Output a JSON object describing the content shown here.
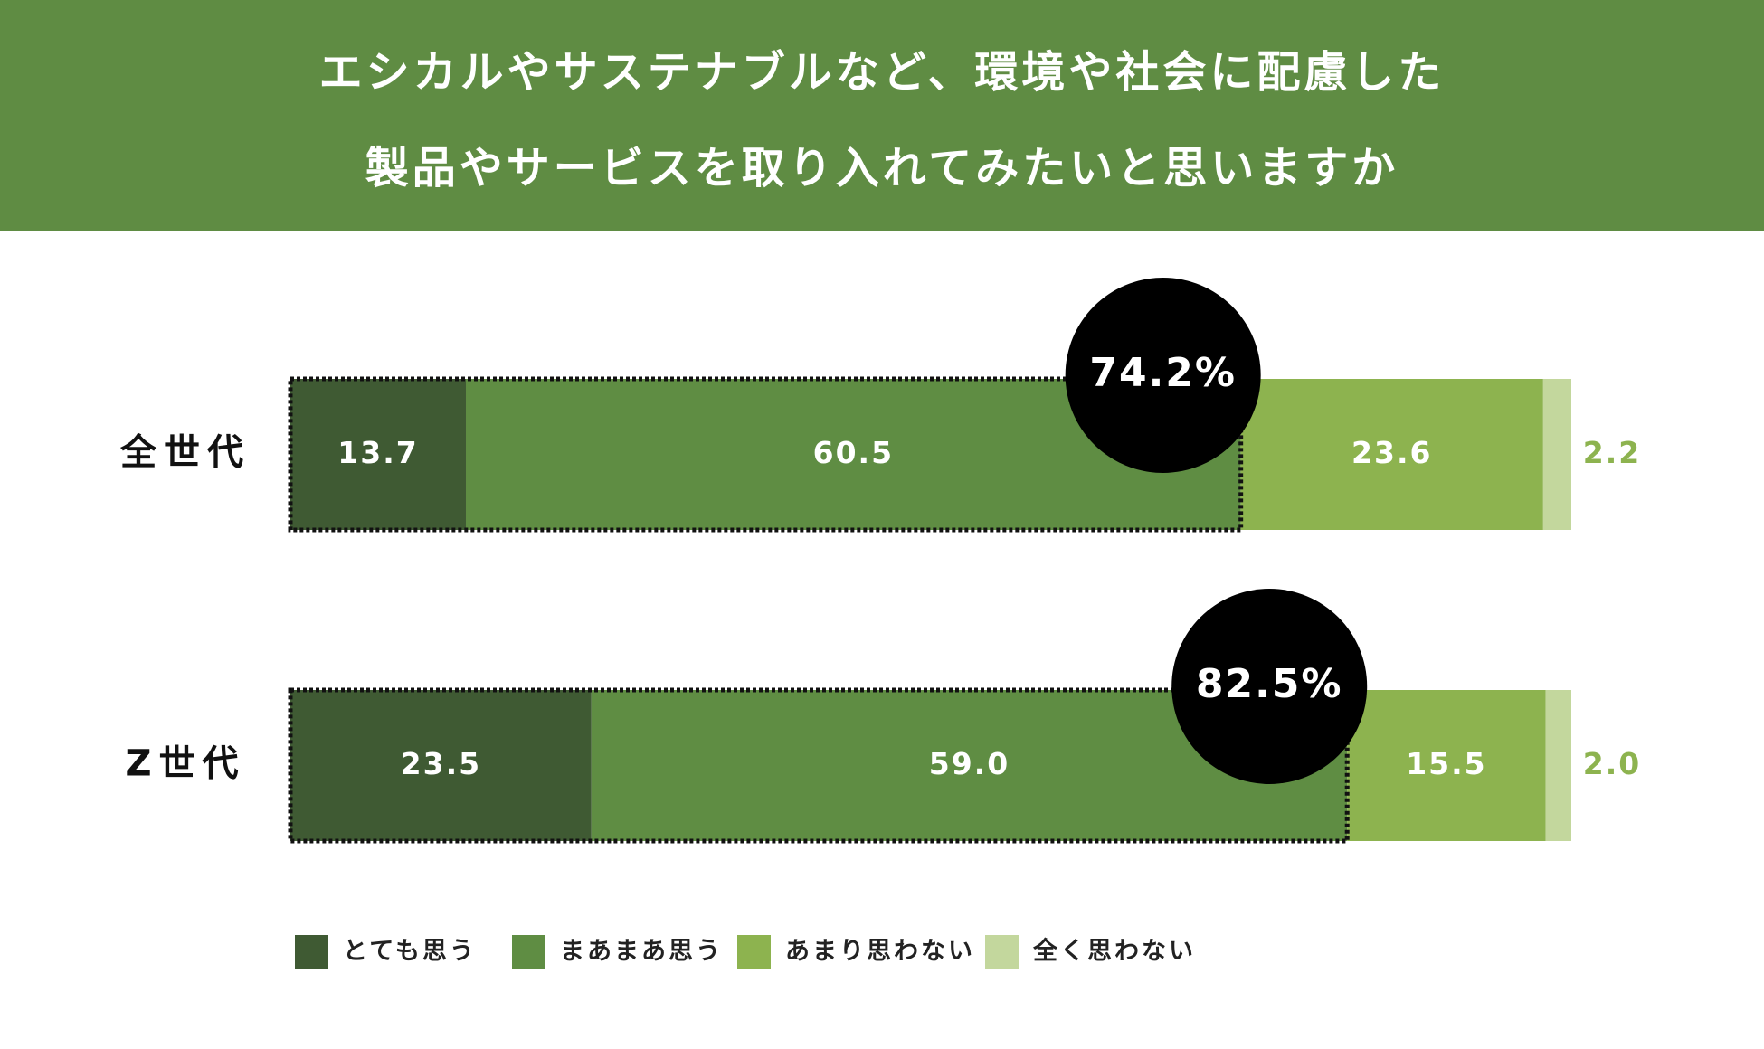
{
  "chart_data": {
    "type": "stacked-bar-horizontal",
    "title": [
      "エシカルやサステナブルなど、環境や社会に配慮した",
      "製品やサービスを取り入れてみたいと思いますか"
    ],
    "categories": [
      "全世代",
      "Z世代"
    ],
    "xlim": [
      0,
      100
    ],
    "series": [
      {
        "name": "とても思う",
        "color": "#3f5a33",
        "values": [
          13.7,
          23.5
        ]
      },
      {
        "name": "まあまあ思う",
        "color": "#5f8d43",
        "values": [
          60.5,
          59
        ],
        "value_labels": [
          "60.5",
          "59.0"
        ]
      },
      {
        "name": "あまり思わない",
        "color": "#8db34f",
        "values": [
          23.6,
          15.5
        ]
      },
      {
        "name": "全く思わない",
        "color": "#c3d79d",
        "values": [
          2.2,
          2
        ],
        "value_labels": [
          "2.2",
          "2.0"
        ]
      }
    ],
    "annotations": [
      {
        "value": 74.2,
        "label": "74.2%"
      },
      {
        "value": 82.5,
        "label": "82.5%"
      }
    ]
  }
}
